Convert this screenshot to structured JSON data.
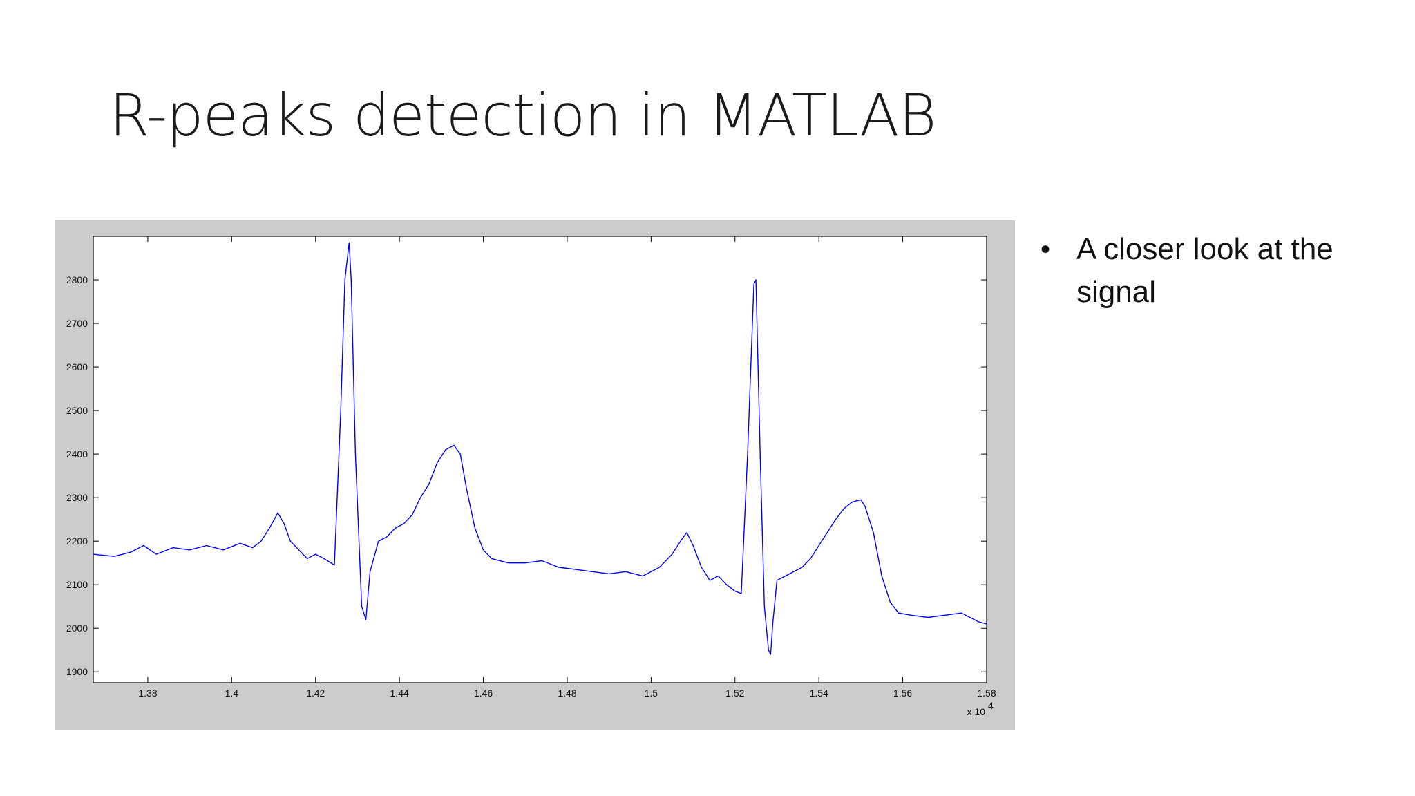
{
  "slide": {
    "title": "R-peaks detection in MATLAB",
    "bullets": [
      "A closer look at the signal"
    ]
  },
  "chart_data": {
    "type": "line",
    "title": "",
    "xlabel": "",
    "ylabel": "",
    "x_exponent_label": "x 10",
    "x_exponent_power": "4",
    "xlim": [
      1.367,
      1.58
    ],
    "ylim": [
      1875,
      2900
    ],
    "x_ticks": [
      1.38,
      1.4,
      1.42,
      1.44,
      1.46,
      1.48,
      1.5,
      1.52,
      1.54,
      1.56,
      1.58
    ],
    "x_tick_labels": [
      "1.38",
      "1.4",
      "1.42",
      "1.44",
      "1.46",
      "1.48",
      "1.5",
      "1.52",
      "1.54",
      "1.56",
      "1.58"
    ],
    "y_ticks": [
      1900,
      2000,
      2100,
      2200,
      2300,
      2400,
      2500,
      2600,
      2700,
      2800
    ],
    "y_tick_labels": [
      "1900",
      "2000",
      "2100",
      "2200",
      "2300",
      "2400",
      "2500",
      "2600",
      "2700",
      "2800"
    ],
    "grid": false,
    "series": [
      {
        "color": "#0000ff",
        "x": [
          1.367,
          1.372,
          1.376,
          1.379,
          1.382,
          1.386,
          1.39,
          1.394,
          1.398,
          1.402,
          1.405,
          1.407,
          1.409,
          1.411,
          1.4125,
          1.414,
          1.416,
          1.418,
          1.42,
          1.422,
          1.4245,
          1.426,
          1.427,
          1.428,
          1.4285,
          1.4295,
          1.431,
          1.432,
          1.433,
          1.435,
          1.437,
          1.439,
          1.441,
          1.443,
          1.445,
          1.447,
          1.449,
          1.451,
          1.453,
          1.4545,
          1.456,
          1.458,
          1.46,
          1.462,
          1.466,
          1.47,
          1.474,
          1.478,
          1.482,
          1.486,
          1.49,
          1.494,
          1.498,
          1.502,
          1.505,
          1.507,
          1.5085,
          1.51,
          1.512,
          1.514,
          1.516,
          1.518,
          1.52,
          1.5215,
          1.523,
          1.5245,
          1.525,
          1.526,
          1.527,
          1.528,
          1.5285,
          1.529,
          1.53,
          1.532,
          1.534,
          1.536,
          1.538,
          1.54,
          1.542,
          1.544,
          1.546,
          1.548,
          1.55,
          1.551,
          1.553,
          1.555,
          1.557,
          1.559,
          1.562,
          1.566,
          1.57,
          1.574,
          1.578,
          1.58
        ],
        "y": [
          2170,
          2165,
          2175,
          2190,
          2170,
          2185,
          2180,
          2190,
          2180,
          2195,
          2185,
          2200,
          2230,
          2265,
          2240,
          2200,
          2180,
          2160,
          2170,
          2160,
          2145,
          2500,
          2800,
          2885,
          2800,
          2400,
          2050,
          2020,
          2130,
          2200,
          2210,
          2230,
          2240,
          2260,
          2300,
          2330,
          2380,
          2410,
          2420,
          2400,
          2320,
          2230,
          2180,
          2160,
          2150,
          2150,
          2155,
          2140,
          2135,
          2130,
          2125,
          2130,
          2120,
          2140,
          2170,
          2200,
          2220,
          2190,
          2140,
          2110,
          2120,
          2100,
          2085,
          2080,
          2400,
          2790,
          2800,
          2400,
          2050,
          1950,
          1940,
          2010,
          2110,
          2120,
          2130,
          2140,
          2160,
          2190,
          2220,
          2250,
          2275,
          2290,
          2295,
          2280,
          2220,
          2120,
          2060,
          2035,
          2030,
          2025,
          2030,
          2035,
          2015,
          2010
        ]
      }
    ]
  }
}
